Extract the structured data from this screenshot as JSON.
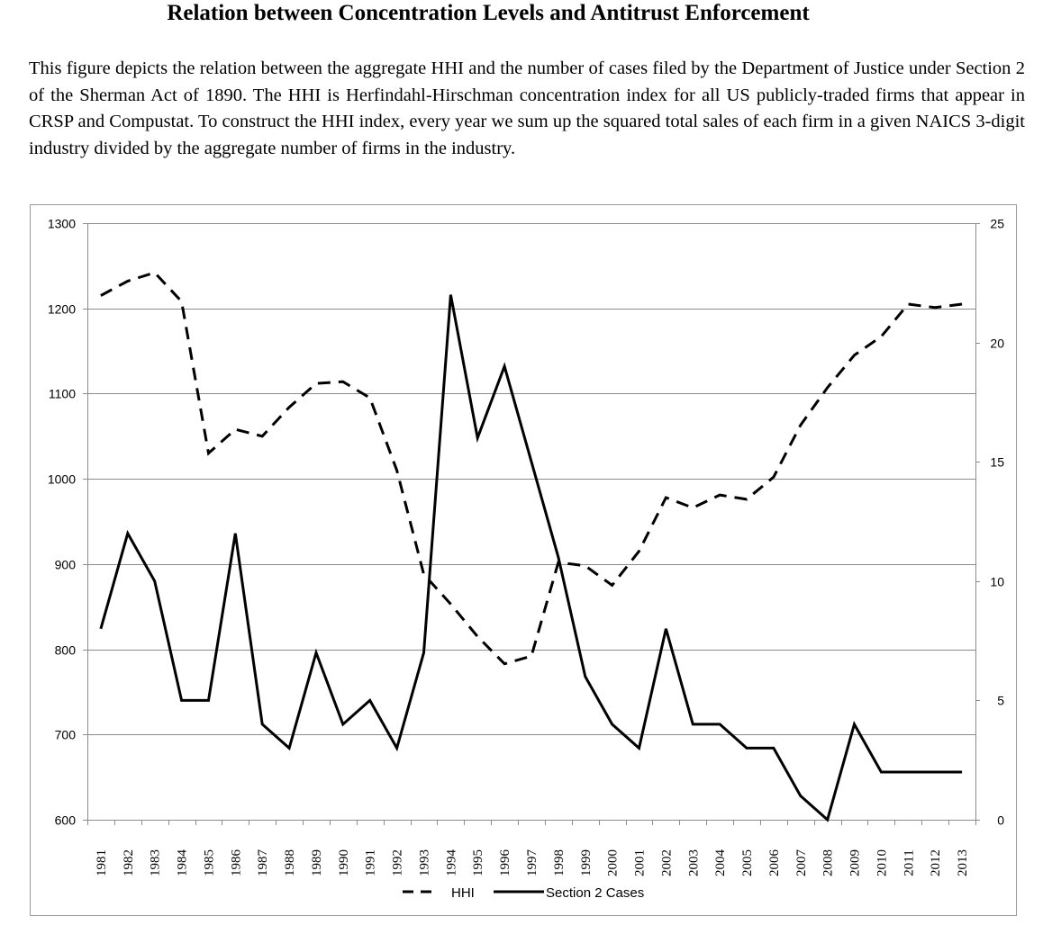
{
  "page": {
    "title": "Relation between Concentration Levels and Antitrust Enforcement",
    "description": "This figure depicts the relation between the aggregate HHI and the number of cases filed by the Department of Justice under Section 2 of the Sherman Act of 1890.  The HHI is Herfindahl-Hirschman concentration index for all US publicly-traded firms that appear in CRSP and Compustat.  To construct the HHI index, every year we sum up the squared total sales of each firm in a given NAICS 3-digit industry divided by the aggregate number of firms in the industry."
  },
  "chart_data": {
    "type": "line",
    "title": "",
    "xlabel": "",
    "ylabel": "",
    "categories": [
      "1981",
      "1982",
      "1983",
      "1984",
      "1985",
      "1986",
      "1987",
      "1988",
      "1989",
      "1990",
      "1991",
      "1992",
      "1993",
      "1994",
      "1995",
      "1996",
      "1997",
      "1998",
      "1999",
      "2000",
      "2001",
      "2002",
      "2003",
      "2004",
      "2005",
      "2006",
      "2007",
      "2008",
      "2009",
      "2010",
      "2011",
      "2012",
      "2013"
    ],
    "y_left": {
      "range": [
        600,
        1300
      ],
      "ticks": [
        600,
        700,
        800,
        900,
        1000,
        1100,
        1200,
        1300
      ]
    },
    "y_right": {
      "range": [
        0,
        25
      ],
      "ticks": [
        0,
        5,
        10,
        15,
        20,
        25
      ]
    },
    "grid": true,
    "legend_position": "bottom",
    "series": [
      {
        "name": "HHI",
        "axis": "left",
        "style": "dashed",
        "color": "#000000",
        "values": [
          1215,
          1232,
          1242,
          1208,
          1030,
          1058,
          1050,
          1084,
          1112,
          1114,
          1095,
          1010,
          888,
          853,
          815,
          783,
          792,
          902,
          898,
          875,
          915,
          978,
          966,
          981,
          976,
          1002,
          1063,
          1107,
          1145,
          1167,
          1205,
          1201,
          1205
        ]
      },
      {
        "name": "Section 2 Cases",
        "axis": "right",
        "style": "solid",
        "color": "#000000",
        "values": [
          8,
          12,
          10,
          5,
          5,
          12,
          4,
          3,
          7,
          4,
          5,
          3,
          7,
          22,
          16,
          19,
          15,
          11,
          6,
          4,
          3,
          8,
          4,
          4,
          3,
          3,
          1,
          0,
          4,
          2,
          2,
          2,
          2
        ]
      }
    ]
  }
}
